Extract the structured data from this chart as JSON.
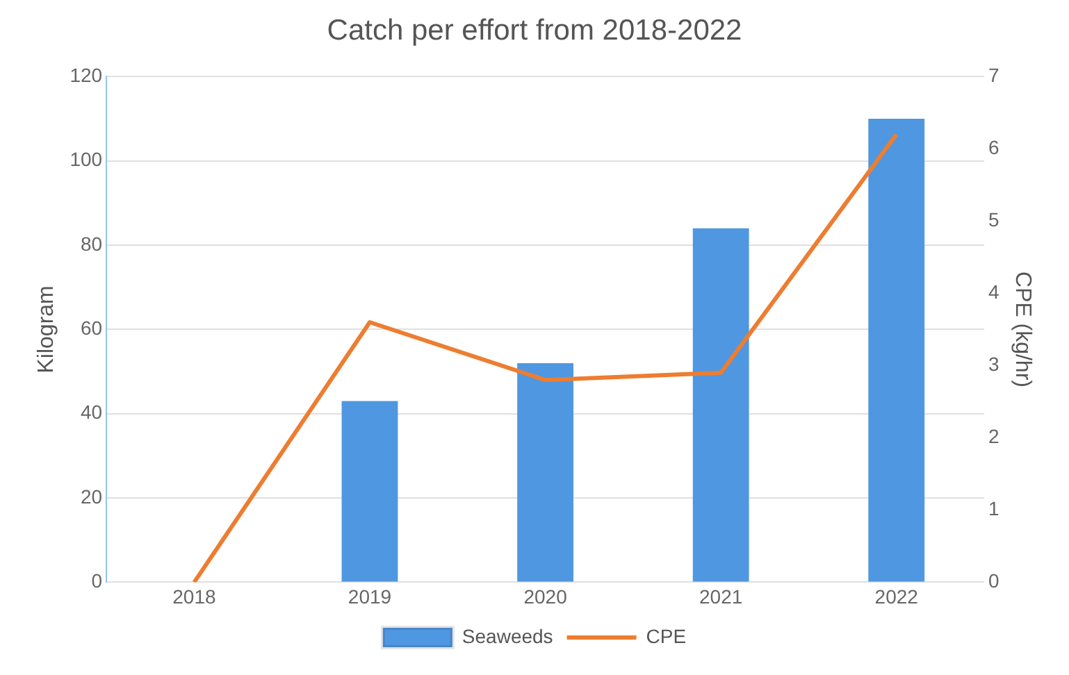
{
  "chart_data": {
    "type": "bar",
    "title": "Catch per effort from 2018-2022",
    "ylabel": "Kilogram",
    "y2label": "CPE (kg/hr)",
    "categories": [
      "2018",
      "2019",
      "2020",
      "2021",
      "2022"
    ],
    "series": [
      {
        "name": "Seaweeds",
        "color": "#4f97e0",
        "values": [
          null,
          43,
          52,
          84,
          110
        ]
      },
      {
        "name": "CPE",
        "type": "line",
        "axis": "y2",
        "color": "#ed7d31",
        "values": [
          0,
          3.6,
          2.8,
          2.9,
          6.2
        ]
      }
    ],
    "ylim": [
      0,
      120
    ],
    "yticks": [
      0,
      20,
      40,
      60,
      80,
      100,
      120
    ],
    "y2lim": [
      0,
      7
    ],
    "y2ticks": [
      0,
      1,
      2,
      3,
      4,
      5,
      6,
      7
    ],
    "grid": "y",
    "legend": "bottom",
    "marker": "none"
  }
}
